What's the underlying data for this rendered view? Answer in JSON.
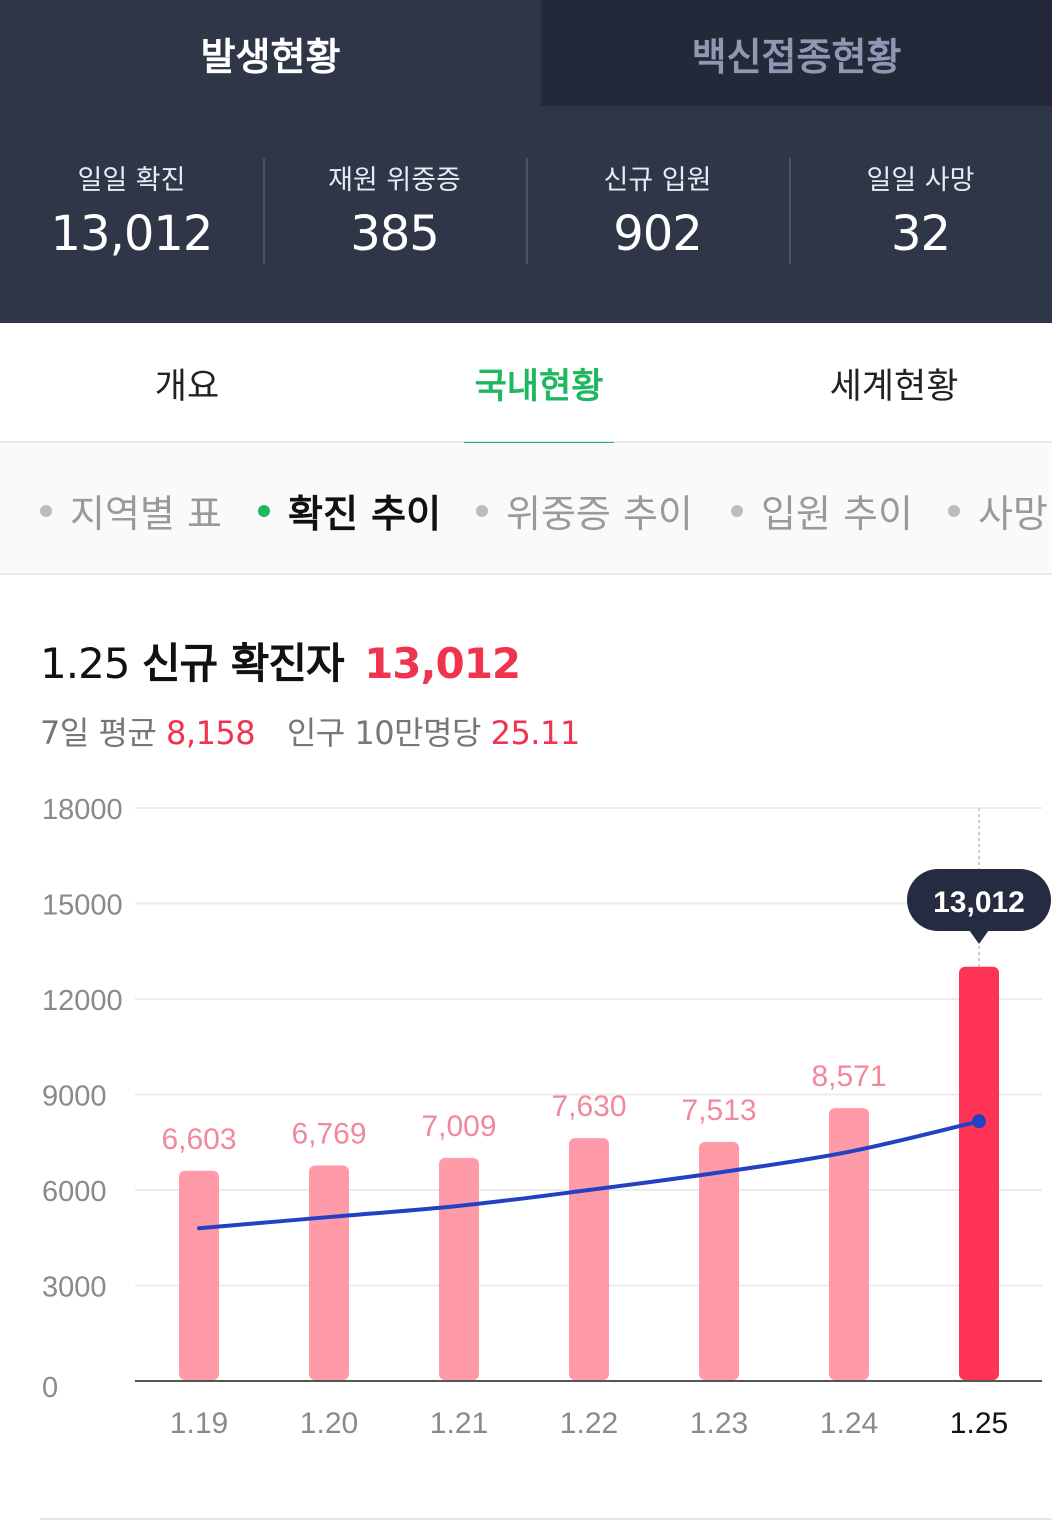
{
  "top_tabs": [
    {
      "label": "발생현황",
      "active": true
    },
    {
      "label": "백신접종현황",
      "active": false
    }
  ],
  "stats": [
    {
      "label": "일일 확진",
      "value": "13,012"
    },
    {
      "label": "재원 위중증",
      "value": "385"
    },
    {
      "label": "신규 입원",
      "value": "902"
    },
    {
      "label": "일일 사망",
      "value": "32"
    }
  ],
  "main_tabs": [
    {
      "label": "개요",
      "active": false
    },
    {
      "label": "국내현황",
      "active": true
    },
    {
      "label": "세계현황",
      "active": false
    }
  ],
  "sub_tabs": [
    {
      "label": "지역별 표",
      "active": false
    },
    {
      "label": "확진 추이",
      "active": true
    },
    {
      "label": "위중증 추이",
      "active": false
    },
    {
      "label": "입원 추이",
      "active": false
    },
    {
      "label": "사망",
      "active": false
    }
  ],
  "headline": {
    "date": "1.25",
    "title": "신규 확진자",
    "value": "13,012"
  },
  "subline": {
    "avg_label": "7일 평균",
    "avg_value": "8,158",
    "per_label": "인구 10만명당",
    "per_value": "25.11"
  },
  "colors": {
    "header_bg": "#2f3648",
    "header_tab_inactive_bg": "#232938",
    "accent_green": "#1fb75f",
    "bar_light": "#ff9aa9",
    "bar_highlight": "#ff3455",
    "line_blue": "#2342c3",
    "tooltip_bg": "#252b40"
  },
  "chart_data": {
    "type": "bar",
    "categories": [
      "1.19",
      "1.20",
      "1.21",
      "1.22",
      "1.23",
      "1.24",
      "1.25"
    ],
    "series": [
      {
        "values": [
          6603,
          6769,
          7009,
          7630,
          7513,
          8571,
          13012
        ]
      },
      {
        "type": "line",
        "values": [
          4800,
          5150,
          5500,
          6000,
          6550,
          7200,
          8158
        ]
      }
    ],
    "value_labels": [
      "6,603",
      "6,769",
      "7,009",
      "7,630",
      "7,513",
      "8,571",
      ""
    ],
    "tooltip": "13,012",
    "ylim": [
      0,
      18000
    ],
    "yticks": [
      "0",
      "3000",
      "6000",
      "9000",
      "12000",
      "15000",
      "18000"
    ],
    "highlight_index": 6,
    "grid": true
  }
}
